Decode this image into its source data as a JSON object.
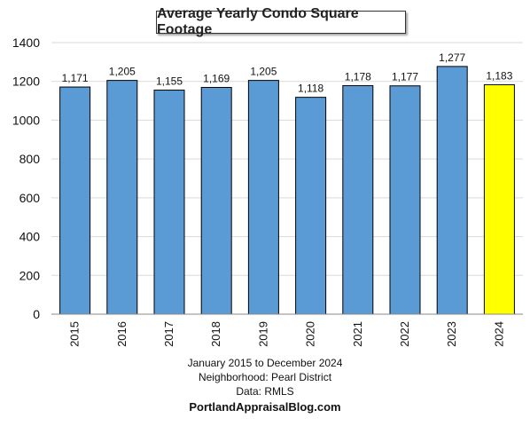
{
  "chart_data": {
    "type": "bar",
    "title": "Average Yearly Condo Square Footage",
    "categories": [
      "2015",
      "2016",
      "2017",
      "2018",
      "2019",
      "2020",
      "2021",
      "2022",
      "2023",
      "2024"
    ],
    "values": [
      1171,
      1205,
      1155,
      1169,
      1205,
      1118,
      1178,
      1177,
      1277,
      1183
    ],
    "value_labels": [
      "1,171",
      "1,205",
      "1,155",
      "1,169",
      "1,205",
      "1,118",
      "1,178",
      "1,177",
      "1,277",
      "1,183"
    ],
    "ylim": [
      0,
      1400
    ],
    "yticks": [
      0,
      200,
      400,
      600,
      800,
      1000,
      1200,
      1400
    ],
    "grid": true,
    "xlabel": "",
    "ylabel": "",
    "colors": {
      "bar": "#5b9bd5",
      "highlight": "#ffff00",
      "highlight_index": 9,
      "outline": "#000000",
      "grid": "#d9d9d9"
    }
  },
  "footer": {
    "line1": "January 2015 to December 2024",
    "line2": "Neighborhood: Pearl District",
    "line3": "Data: RMLS",
    "line4": "PortlandAppraisalBlog.com"
  }
}
